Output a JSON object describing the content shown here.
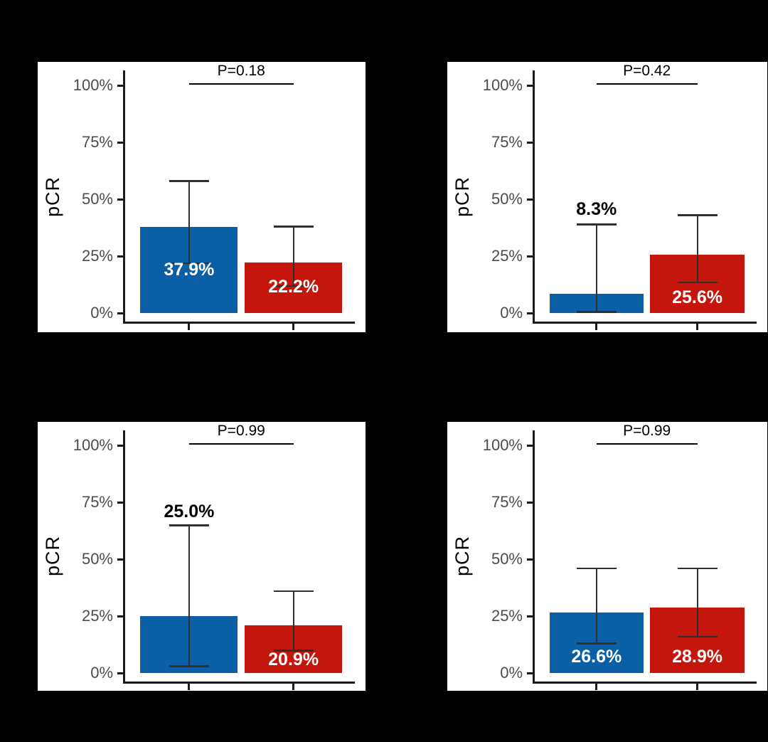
{
  "figure": {
    "background": "#000000",
    "panel_background": "#ffffff"
  },
  "colors": {
    "bar_blue": "#0b5fa4",
    "bar_red": "#c4160d",
    "error_bar": "#2f2f2f",
    "axis": "#1a1a1a",
    "tick_label": "#4d4d4d",
    "p_label": "#000000",
    "label_inside": "#ffffff",
    "label_above": "#000000"
  },
  "y_axis": {
    "title": "pCR",
    "tick_values": [
      0,
      25,
      50,
      75,
      100
    ],
    "tick_labels": [
      "0%",
      "25%",
      "50%",
      "75%",
      "100%"
    ],
    "range": [
      0,
      100
    ]
  },
  "chart_data": [
    {
      "type": "bar",
      "position": "top-left",
      "ylabel": "pCR",
      "ylim": [
        0,
        100
      ],
      "p_value_label": "P=0.18",
      "series": [
        {
          "name": "blue",
          "value": 37.9,
          "label": "37.9%",
          "label_position": "inside",
          "label_y": 19.0,
          "ci_low": 22,
          "ci_high": 58
        },
        {
          "name": "red",
          "value": 22.2,
          "label": "22.2%",
          "label_position": "inside",
          "label_y": 11.5,
          "ci_low": 12,
          "ci_high": 38
        }
      ]
    },
    {
      "type": "bar",
      "position": "top-right",
      "ylabel": "pCR",
      "ylim": [
        0,
        100
      ],
      "p_value_label": "P=0.42",
      "series": [
        {
          "name": "blue",
          "value": 8.3,
          "label": "8.3%",
          "label_position": "above",
          "label_y": 45.5,
          "ci_low": 0.5,
          "ci_high": 39
        },
        {
          "name": "red",
          "value": 25.6,
          "label": "25.6%",
          "label_position": "inside",
          "label_y": 7.0,
          "ci_low": 13.5,
          "ci_high": 43
        }
      ]
    },
    {
      "type": "bar",
      "position": "bottom-left",
      "ylabel": "pCR",
      "ylim": [
        0,
        100
      ],
      "p_value_label": "P=0.99",
      "series": [
        {
          "name": "blue",
          "value": 25.0,
          "label": "25.0%",
          "label_position": "above",
          "label_y": 71.0,
          "ci_low": 3,
          "ci_high": 65
        },
        {
          "name": "red",
          "value": 20.9,
          "label": "20.9%",
          "label_position": "inside",
          "label_y": 5.8,
          "ci_low": 10,
          "ci_high": 36
        }
      ]
    },
    {
      "type": "bar",
      "position": "bottom-right",
      "ylabel": "pCR",
      "ylim": [
        0,
        100
      ],
      "p_value_label": "P=0.99",
      "series": [
        {
          "name": "blue",
          "value": 26.6,
          "label": "26.6%",
          "label_position": "inside",
          "label_y": 7.2,
          "ci_low": 13,
          "ci_high": 46
        },
        {
          "name": "red",
          "value": 28.9,
          "label": "28.9%",
          "label_position": "inside",
          "label_y": 7.2,
          "ci_low": 16,
          "ci_high": 46
        }
      ]
    }
  ]
}
